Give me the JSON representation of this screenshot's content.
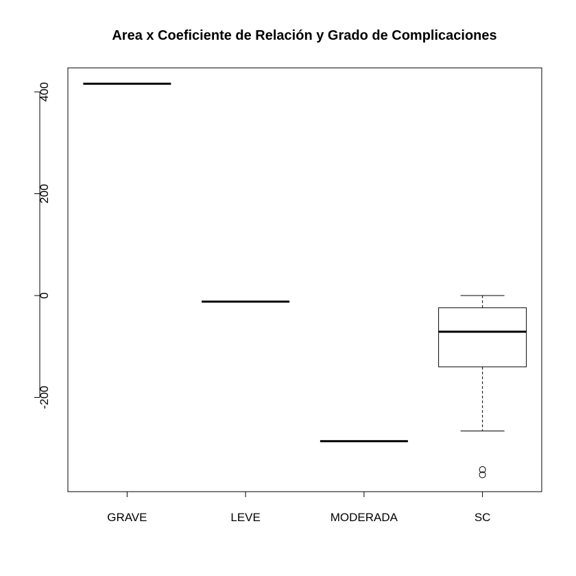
{
  "chart_data": {
    "type": "box",
    "title": "Area x Coeficiente de Relación y Grado de Complicaciones",
    "xlabel": "",
    "ylabel": "",
    "categories": [
      "GRAVE",
      "LEVE",
      "MODERADA",
      "SC"
    ],
    "ylim": [
      -385,
      450
    ],
    "yticks": [
      400,
      200,
      0,
      -200
    ],
    "boxes": [
      {
        "category": "GRAVE",
        "whisker_low": 416,
        "q1": 416,
        "median": 416,
        "q3": 416,
        "whisker_high": 416,
        "outliers": []
      },
      {
        "category": "LEVE",
        "whisker_low": -12,
        "q1": -12,
        "median": -12,
        "q3": -12,
        "whisker_high": -12,
        "outliers": []
      },
      {
        "category": "MODERADA",
        "whisker_low": -286,
        "q1": -286,
        "median": -286,
        "q3": -286,
        "whisker_high": -286,
        "outliers": []
      },
      {
        "category": "SC",
        "whisker_low": -266,
        "q1": -140,
        "median": -71,
        "q3": -24,
        "whisker_high": 0,
        "outliers": [
          -342,
          -352
        ]
      }
    ],
    "grid": false,
    "legend": "none"
  }
}
